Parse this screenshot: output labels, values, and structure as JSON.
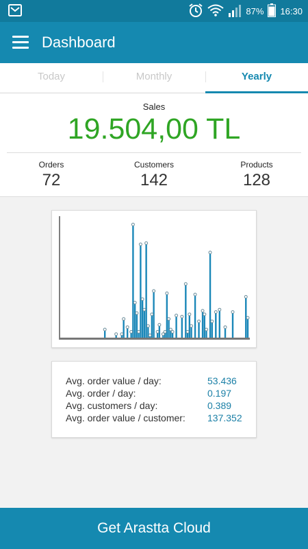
{
  "status_bar": {
    "battery": "87%",
    "time": "16:30",
    "icons": [
      "gmail-icon",
      "alarm-icon",
      "wifi-icon",
      "signal-icon",
      "battery-icon"
    ]
  },
  "app_bar": {
    "title": "Dashboard",
    "menu_icon": "hamburger-menu-icon"
  },
  "tabs": [
    {
      "label": "Today",
      "active": false
    },
    {
      "label": "Monthly",
      "active": false
    },
    {
      "label": "Yearly",
      "active": true
    }
  ],
  "summary": {
    "sales_label": "Sales",
    "sales_value": "19.504,00 TL",
    "stats": [
      {
        "label": "Orders",
        "value": "72"
      },
      {
        "label": "Customers",
        "value": "142"
      },
      {
        "label": "Products",
        "value": "128"
      }
    ]
  },
  "colors": {
    "primary": "#1589b0",
    "sales_green": "#2fa524",
    "chart_line": "#1a87b8",
    "value_blue": "#1a7fa6"
  },
  "chart_data": {
    "type": "line",
    "title": "",
    "xlabel": "",
    "ylabel": "",
    "x": [
      1,
      2,
      3,
      4,
      5,
      6,
      7,
      8,
      9,
      10,
      11,
      12,
      13,
      14,
      15,
      16,
      17,
      18,
      19,
      20,
      21,
      22,
      23,
      24,
      25,
      26,
      27,
      28,
      29,
      30,
      31,
      32,
      33,
      34,
      35,
      36,
      37,
      38,
      39,
      40,
      41,
      42,
      43,
      44,
      45,
      46,
      47,
      48,
      49,
      50,
      51,
      52,
      53,
      54,
      55,
      56,
      57,
      58,
      59,
      60,
      61,
      62,
      63,
      64,
      65,
      66,
      67,
      68,
      69,
      70,
      71,
      72,
      73,
      74,
      75,
      76,
      77,
      78,
      79,
      80,
      81,
      82,
      83,
      84,
      85,
      86,
      87,
      88,
      89,
      90,
      91,
      92,
      93,
      94,
      95,
      96,
      97,
      98,
      99,
      100
    ],
    "values": [
      0,
      0,
      0,
      0,
      0,
      0,
      0,
      0,
      0,
      0,
      0,
      0,
      0,
      0,
      0,
      0,
      0,
      0,
      0,
      0,
      0,
      0,
      0,
      0.07,
      0,
      0,
      0,
      0,
      0,
      0.03,
      0,
      0,
      0.03,
      0.16,
      0,
      0.09,
      0,
      0.05,
      0.97,
      0.3,
      0.21,
      0.05,
      0.8,
      0.33,
      0.24,
      0.81,
      0.1,
      0.02,
      0.2,
      0.4,
      0,
      0.05,
      0.11,
      0,
      0.03,
      0.05,
      0.38,
      0.16,
      0.07,
      0.05,
      0,
      0.19,
      0,
      0,
      0.18,
      0,
      0.46,
      0.05,
      0.2,
      0.1,
      0,
      0.37,
      0,
      0.14,
      0,
      0.23,
      0.2,
      0.07,
      0,
      0.73,
      0.14,
      0,
      0.22,
      0,
      0.24,
      0,
      0,
      0.09,
      0,
      0,
      0,
      0.22,
      0,
      0,
      0,
      0,
      0,
      0,
      0.35,
      0.17
    ],
    "grid": false
  },
  "averages": [
    {
      "label": "Avg. order value / day:",
      "value": "53.436"
    },
    {
      "label": "Avg. order / day:",
      "value": "0.197"
    },
    {
      "label": "Avg. customers / day:",
      "value": "0.389"
    },
    {
      "label": "Avg. order value / customer:",
      "value": "137.352"
    }
  ],
  "cta": {
    "label": "Get Arastta Cloud"
  }
}
